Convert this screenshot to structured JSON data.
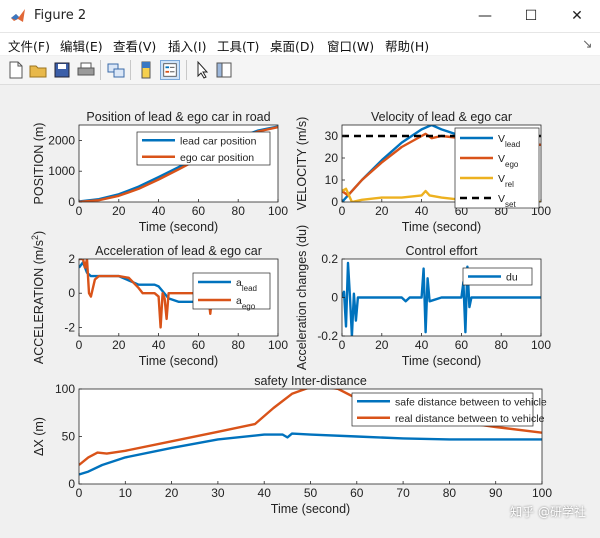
{
  "window": {
    "title": "Figure 2",
    "minimize_glyph": "—",
    "maximize_glyph": "☐",
    "close_glyph": "✕"
  },
  "menu": [
    "文件(F)",
    "编辑(E)",
    "查看(V)",
    "插入(I)",
    "工具(T)",
    "桌面(D)",
    "窗口(W)",
    "帮助(H)"
  ],
  "menu_overflow": "↘",
  "toolbar_icons": [
    "new-figure-icon",
    "open-file-icon",
    "save-icon",
    "print-icon",
    "link-icon",
    "colorbar-icon",
    "legend-icon",
    "pointer-icon",
    "property-editor-icon"
  ],
  "colors": {
    "blue": "#0072bd",
    "orange": "#d95319",
    "yellow": "#edb120",
    "black": "#000000"
  },
  "watermark": "知乎 @研学社",
  "chart_data": [
    {
      "type": "line",
      "title": "Position of lead & ego car in road",
      "xlabel": "Time  (second)",
      "ylabel": "POSITION (m)",
      "xlim": [
        0,
        100
      ],
      "ylim": [
        0,
        2500
      ],
      "xticks": [
        0,
        20,
        40,
        60,
        80,
        100
      ],
      "yticks": [
        0,
        1000,
        2000
      ],
      "legend_position": "top-right",
      "series": [
        {
          "name": "lead car position",
          "color": "#0072bd",
          "x": [
            0,
            10,
            20,
            30,
            40,
            50,
            60,
            70,
            80,
            90,
            100
          ],
          "y": [
            15,
            90,
            250,
            500,
            810,
            1130,
            1460,
            1780,
            2080,
            2320,
            2450
          ]
        },
        {
          "name": "ego car position",
          "color": "#d95319",
          "x": [
            0,
            10,
            20,
            30,
            40,
            50,
            60,
            70,
            80,
            90,
            100
          ],
          "y": [
            0,
            60,
            200,
            430,
            730,
            1060,
            1400,
            1730,
            2040,
            2290,
            2430
          ]
        }
      ]
    },
    {
      "type": "line",
      "title": "Velocity of lead & ego car",
      "xlabel": "Time  (second)",
      "ylabel": "VELOCITY (m/s)",
      "xlim": [
        0,
        100
      ],
      "ylim": [
        0,
        35
      ],
      "xticks": [
        0,
        20,
        40,
        60,
        80,
        100
      ],
      "yticks": [
        0,
        10,
        20,
        30
      ],
      "legend_position": "right",
      "series": [
        {
          "name": "V",
          "sub": "lead",
          "color": "#0072bd",
          "x": [
            0,
            10,
            20,
            30,
            40,
            45,
            50,
            60,
            70,
            80,
            100
          ],
          "y": [
            0,
            10,
            19,
            27,
            33,
            35,
            33,
            30,
            28,
            27,
            26
          ]
        },
        {
          "name": "V",
          "sub": "ego",
          "color": "#d95319",
          "x": [
            0,
            3,
            10,
            20,
            30,
            40,
            42,
            45,
            50,
            60,
            70,
            80,
            100
          ],
          "y": [
            5,
            3,
            10,
            18,
            25,
            30,
            31,
            29,
            30,
            29,
            28,
            27,
            26
          ]
        },
        {
          "name": "V",
          "sub": "rel",
          "color": "#edb120",
          "x": [
            0,
            2,
            5,
            10,
            20,
            30,
            40,
            42,
            44,
            50,
            60,
            70,
            80,
            100
          ],
          "y": [
            5,
            6,
            0,
            1,
            2,
            2,
            3,
            5,
            3,
            2,
            1,
            0,
            0,
            0
          ]
        },
        {
          "name": "V",
          "sub": "set",
          "color": "#000000",
          "dashed": true,
          "x": [
            0,
            100
          ],
          "y": [
            30,
            30
          ]
        }
      ]
    },
    {
      "type": "line",
      "title": "Acceleration of lead & ego car",
      "xlabel": "Time  (second)",
      "ylabel": "ACCELERATION (m/s^2)",
      "xlim": [
        0,
        100
      ],
      "ylim": [
        -2.5,
        2
      ],
      "xticks": [
        0,
        20,
        40,
        60,
        80,
        100
      ],
      "yticks": [
        -2,
        0,
        2
      ],
      "legend_position": "right",
      "series": [
        {
          "name": "a",
          "sub": "lead",
          "color": "#0072bd",
          "x": [
            0,
            2,
            4,
            6,
            10,
            20,
            30,
            38,
            40,
            45,
            50,
            60,
            65
          ],
          "y": [
            1.5,
            1.8,
            1.2,
            1.0,
            1.0,
            1.0,
            0.5,
            0.5,
            0.4,
            -0.3,
            -0.5,
            -0.5,
            -0.5
          ]
        },
        {
          "name": "a",
          "sub": "ego",
          "color": "#d95319",
          "x": [
            0,
            2,
            3,
            4,
            5,
            6,
            8,
            10,
            20,
            25,
            30,
            32,
            38,
            40,
            41,
            42,
            43,
            44,
            45,
            50,
            60,
            62,
            64,
            65,
            66,
            67
          ],
          "y": [
            2.0,
            2.0,
            1.5,
            2.0,
            0.0,
            -0.2,
            0.8,
            1.0,
            1.0,
            0.9,
            0.3,
            0.0,
            0.0,
            -0.2,
            -2.0,
            0.0,
            -0.3,
            -1.5,
            0.0,
            0.0,
            0.0,
            -0.6,
            0.0,
            -0.2,
            -1.2,
            0.0
          ]
        }
      ]
    },
    {
      "type": "line",
      "title": "Control effort",
      "xlabel": "Time  (second)",
      "ylabel": "Acceleration changes (du)",
      "xlim": [
        0,
        100
      ],
      "ylim": [
        -0.2,
        0.2
      ],
      "xticks": [
        0,
        20,
        40,
        60,
        80,
        100
      ],
      "yticks": [
        -0.2,
        0,
        0.2
      ],
      "legend_position": "top-right",
      "series": [
        {
          "name": "du",
          "color": "#0072bd",
          "x": [
            0,
            1,
            2,
            3,
            4,
            5,
            6,
            7,
            8,
            10,
            20,
            30,
            32,
            34,
            40,
            41,
            42,
            43,
            44,
            50,
            60,
            61,
            62,
            63,
            64,
            65,
            70,
            80,
            100
          ],
          "y": [
            0,
            0.03,
            -0.15,
            0.18,
            0.0,
            -0.2,
            0.02,
            -0.12,
            0.0,
            0.0,
            0.0,
            0.0,
            -0.02,
            0.0,
            0.0,
            0.15,
            -0.18,
            0.1,
            -0.02,
            0.0,
            0.0,
            0.08,
            -0.18,
            0.16,
            -0.05,
            0.0,
            0.0,
            0.0,
            0.0
          ]
        }
      ]
    },
    {
      "type": "line",
      "title": "safety Inter-distance",
      "xlabel": "Time (second)",
      "ylabel": "ΔX (m)",
      "xlim": [
        0,
        100
      ],
      "ylim": [
        0,
        100
      ],
      "xticks": [
        0,
        10,
        20,
        30,
        40,
        50,
        60,
        70,
        80,
        90,
        100
      ],
      "yticks": [
        0,
        50,
        100
      ],
      "legend_position": "top-right",
      "series": [
        {
          "name": "safe distance between to vehicle",
          "color": "#0072bd",
          "x": [
            0,
            2,
            5,
            10,
            20,
            30,
            40,
            44,
            45,
            46,
            50,
            60,
            70,
            80,
            90,
            100
          ],
          "y": [
            10,
            13,
            20,
            28,
            38,
            47,
            52,
            52,
            49,
            53,
            52,
            50,
            48,
            47,
            47,
            47
          ]
        },
        {
          "name": "real distance between to vehicle",
          "color": "#d95319",
          "x": [
            0,
            2,
            4,
            6,
            10,
            20,
            30,
            38,
            42,
            46,
            50,
            52,
            56,
            60,
            70,
            80,
            90,
            100
          ],
          "y": [
            20,
            28,
            33,
            32,
            35,
            45,
            55,
            63,
            80,
            95,
            102,
            103,
            100,
            90,
            76,
            67,
            60,
            54
          ]
        }
      ]
    }
  ]
}
